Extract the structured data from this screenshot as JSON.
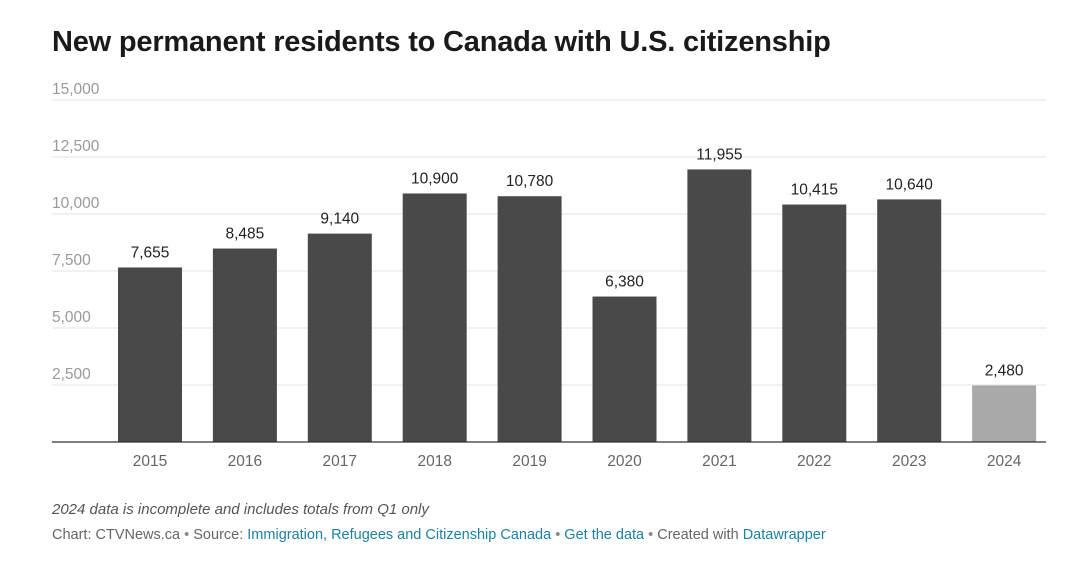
{
  "title": "New permanent residents to Canada with U.S. citizenship",
  "chart_data": {
    "type": "bar",
    "title": "New permanent residents to Canada with U.S. citizenship",
    "xlabel": "",
    "ylabel": "",
    "categories": [
      "2015",
      "2016",
      "2017",
      "2018",
      "2019",
      "2020",
      "2021",
      "2022",
      "2023",
      "2024"
    ],
    "values": [
      7655,
      8485,
      9140,
      10900,
      10780,
      6380,
      11955,
      10415,
      10640,
      2480
    ],
    "value_labels": [
      "7,655",
      "8,485",
      "9,140",
      "10,900",
      "10,780",
      "6,380",
      "11,955",
      "10,415",
      "10,640",
      "2,480"
    ],
    "ylim": [
      0,
      15000
    ],
    "y_ticks": [
      2500,
      5000,
      7500,
      10000,
      12500,
      15000
    ],
    "y_tick_labels": [
      "2,500",
      "5,000",
      "7,500",
      "10,000",
      "12,500",
      "15,000"
    ],
    "grid": true,
    "bar_color": "#494949",
    "highlight_color": "#a9a9a9",
    "highlight_categories": [
      "2024"
    ]
  },
  "note": "2024 data is incomplete and includes totals from Q1 only",
  "footer": {
    "chart_prefix": "Chart: CTVNews.ca",
    "source_prefix": "Source:",
    "source_link": "Immigration, Refugees and Citizenship Canada",
    "get_data": "Get the data",
    "created_prefix": "Created with",
    "created_link": "Datawrapper"
  }
}
